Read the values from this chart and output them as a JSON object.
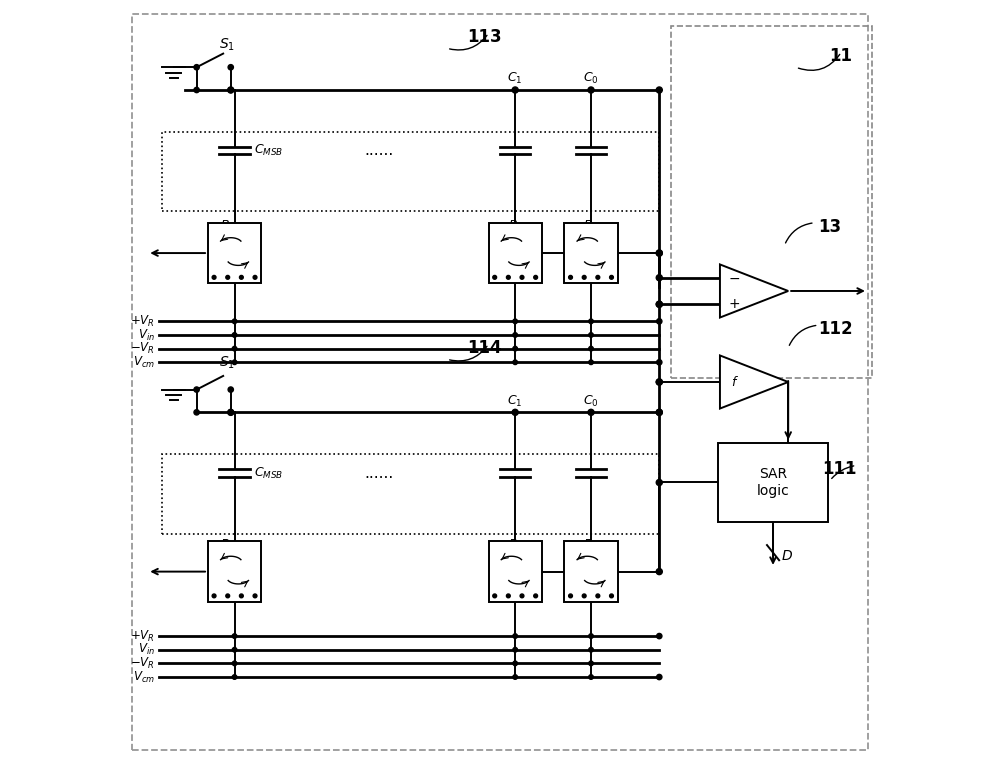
{
  "bg_color": "#ffffff",
  "line_color": "#000000",
  "fig_width": 10.0,
  "fig_height": 7.64
}
